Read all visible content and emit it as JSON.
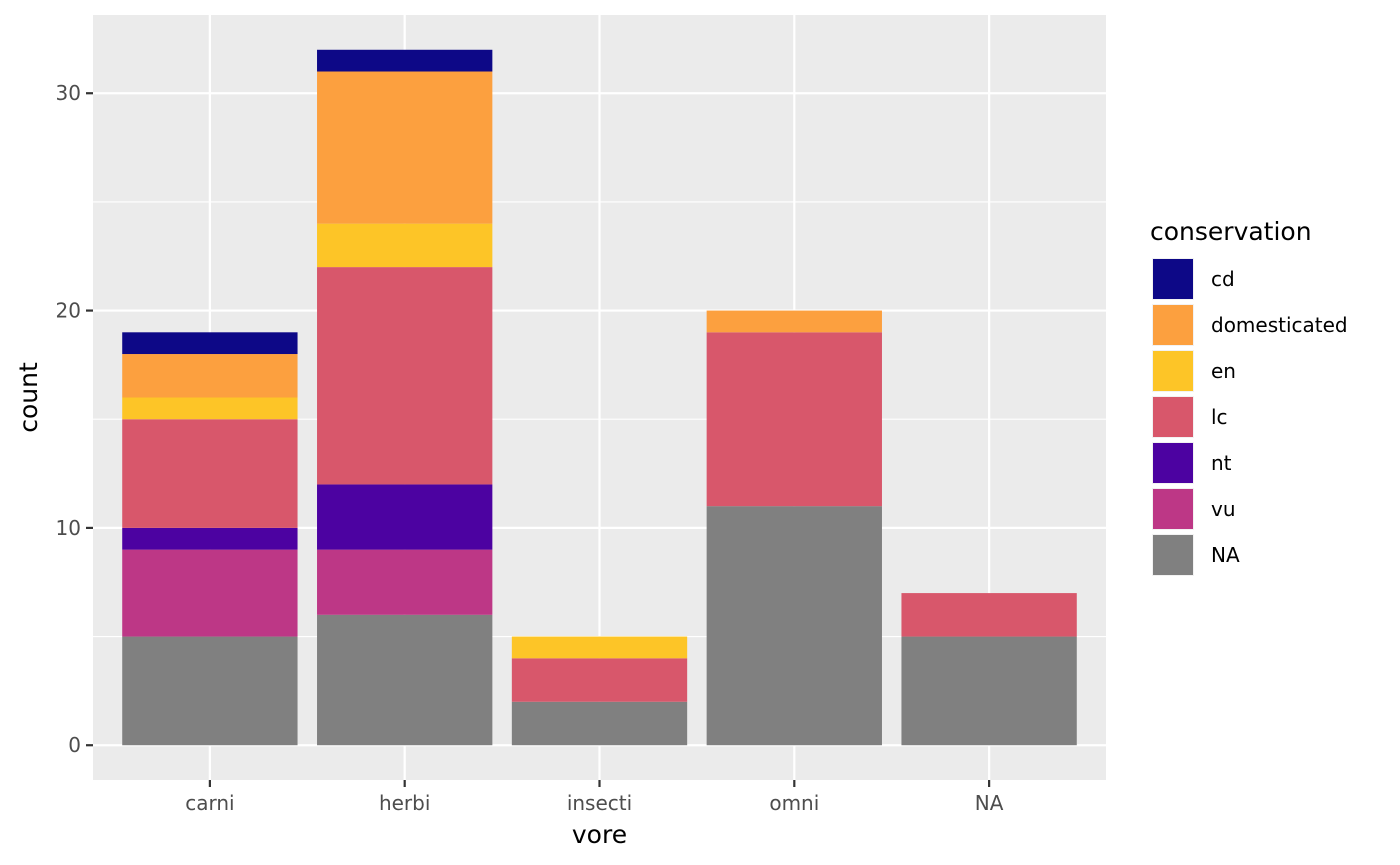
{
  "chart_data": {
    "type": "bar",
    "stacked": true,
    "xlabel": "vore",
    "ylabel": "count",
    "ylim": [
      -1.6,
      33.6
    ],
    "yticks": [
      0,
      10,
      20,
      30
    ],
    "categories": [
      "carni",
      "herbi",
      "insecti",
      "omni",
      "NA"
    ],
    "legend": {
      "title": "conservation",
      "position": "right"
    },
    "series": [
      {
        "name": "NA",
        "color": "#808080",
        "values": [
          5,
          6,
          2,
          11,
          5
        ]
      },
      {
        "name": "vu",
        "color": "#BD3786",
        "values": [
          4,
          3,
          0,
          0,
          0
        ]
      },
      {
        "name": "nt",
        "color": "#4C02A1",
        "values": [
          1,
          3,
          0,
          0,
          0
        ]
      },
      {
        "name": "lc",
        "color": "#D8576B",
        "values": [
          5,
          10,
          2,
          8,
          2
        ]
      },
      {
        "name": "en",
        "color": "#FDC527",
        "values": [
          1,
          2,
          1,
          0,
          0
        ]
      },
      {
        "name": "domesticated",
        "color": "#FCA03F",
        "values": [
          2,
          7,
          0,
          1,
          0
        ]
      },
      {
        "name": "cd",
        "color": "#0D0887",
        "values": [
          1,
          1,
          0,
          0,
          0
        ]
      }
    ],
    "legend_order": [
      "cd",
      "domesticated",
      "en",
      "lc",
      "nt",
      "vu",
      "NA"
    ],
    "panel_background": "#EBEBEB",
    "grid": true
  }
}
